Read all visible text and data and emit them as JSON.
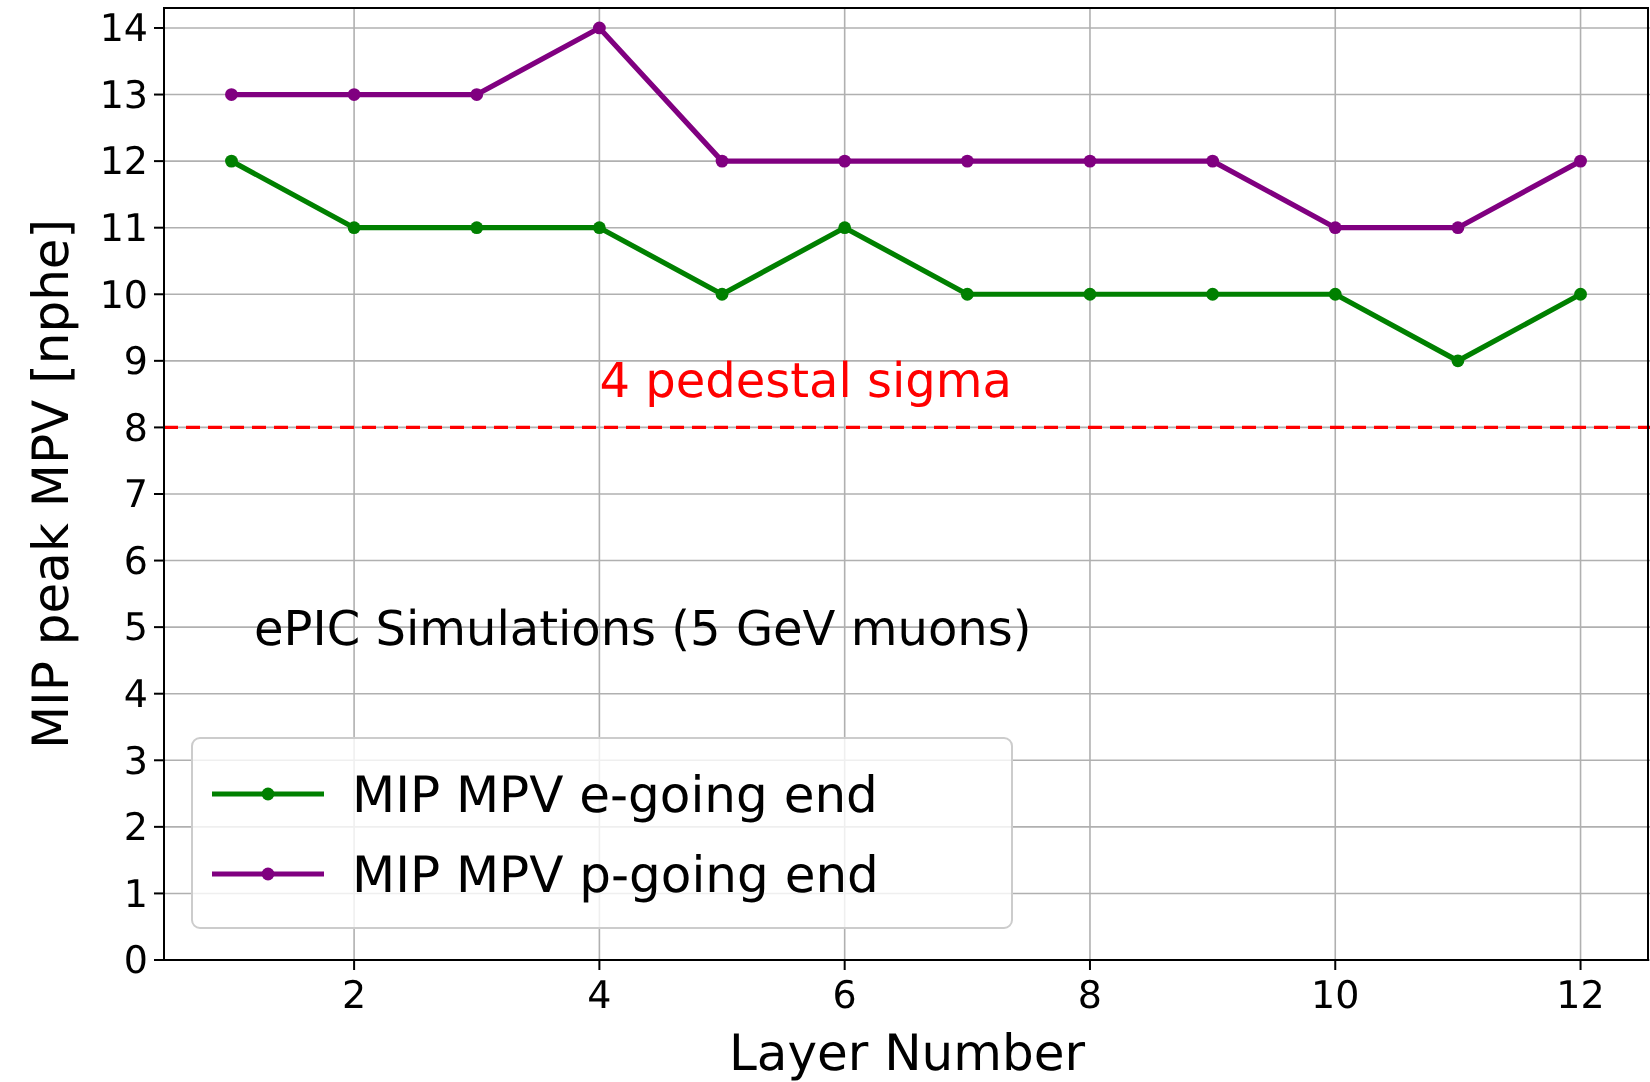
{
  "chart_data": {
    "type": "line",
    "xlabel": "Layer Number",
    "ylabel": "MIP peak MPV [nphe]",
    "x": [
      1,
      2,
      3,
      4,
      5,
      6,
      7,
      8,
      9,
      10,
      11,
      12
    ],
    "series": [
      {
        "name": "MIP MPV e-going end",
        "color": "#008000",
        "values": [
          12,
          11,
          11,
          11,
          10,
          11,
          10,
          10,
          10,
          10,
          9,
          10
        ]
      },
      {
        "name": "MIP MPV p-going end",
        "color": "#800080",
        "values": [
          13,
          13,
          13,
          14,
          12,
          12,
          12,
          12,
          12,
          11,
          11,
          12
        ]
      }
    ],
    "xlim": [
      0.45,
      12.55
    ],
    "xticks": [
      2,
      4,
      6,
      8,
      10,
      12
    ],
    "ylim": [
      0,
      14.3
    ],
    "yticks": [
      0,
      1,
      2,
      3,
      4,
      5,
      6,
      7,
      8,
      9,
      10,
      11,
      12,
      13,
      14
    ],
    "ref_lines": [
      {
        "axis": "y",
        "value": 8,
        "label": "4 pedestal sigma",
        "color": "#ff0000",
        "line_style": "dashed"
      }
    ],
    "annotations": [
      "ePIC Simulations (5 GeV muons)"
    ],
    "grid": true,
    "legend": "bottom left",
    "marker": "circle",
    "line_style": "solid"
  }
}
